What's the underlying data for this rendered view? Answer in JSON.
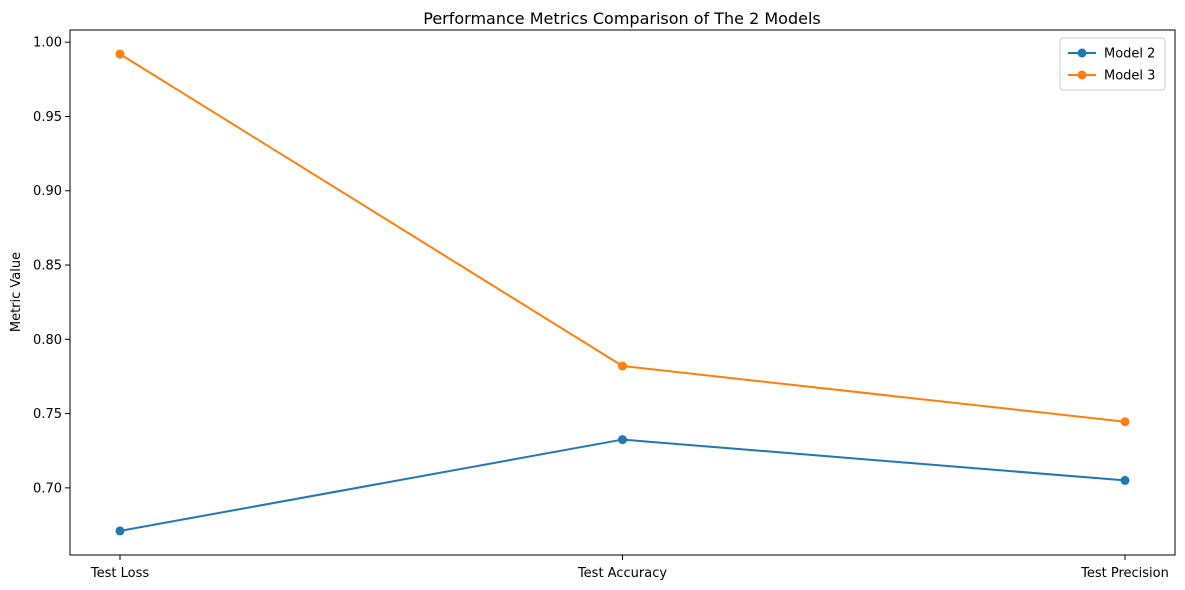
{
  "chart_data": {
    "type": "line",
    "title": "Performance Metrics Comparison of The 2 Models",
    "xlabel": "",
    "ylabel": "Metric Value",
    "categories": [
      "Test Loss",
      "Test Accuracy",
      "Test Precision"
    ],
    "series": [
      {
        "name": "Model 2",
        "color": "#1f77b4",
        "values": [
          0.671,
          0.7325,
          0.705
        ]
      },
      {
        "name": "Model 3",
        "color": "#ff7f0e",
        "values": [
          0.992,
          0.782,
          0.7445
        ]
      }
    ],
    "yticks": [
      "0.70",
      "0.75",
      "0.80",
      "0.85",
      "0.90",
      "0.95",
      "1.00"
    ],
    "ylim": [
      0.6548,
      1.0082
    ],
    "grid": false,
    "legend_position": "top-right",
    "marker": "circle"
  }
}
